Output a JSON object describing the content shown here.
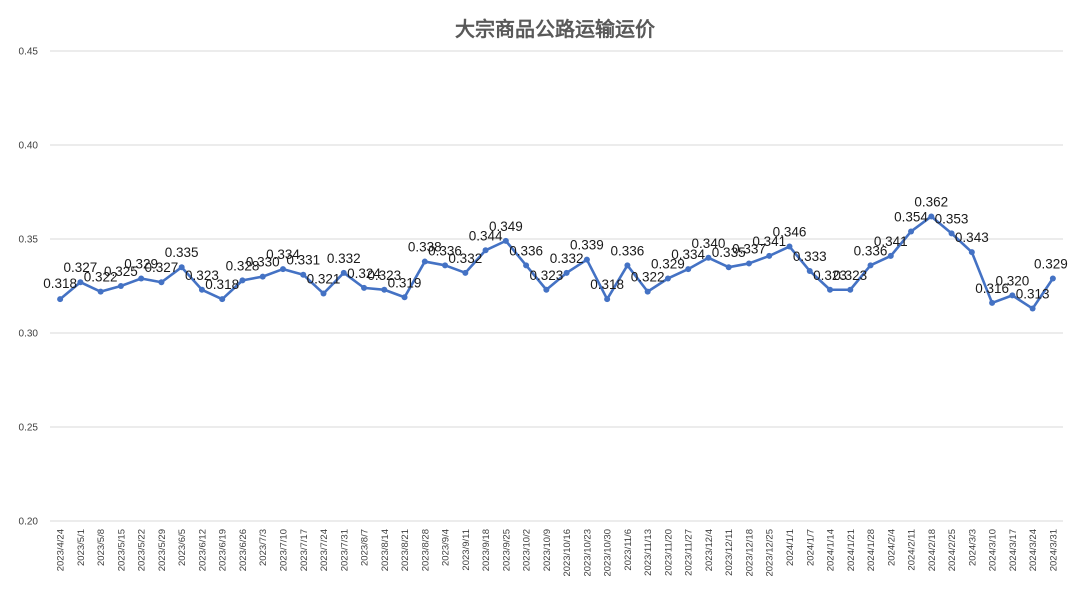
{
  "chart_data": {
    "type": "line",
    "title": "大宗商品公路运输运价",
    "xlabel": "",
    "ylabel": "",
    "ylim": [
      0.2,
      0.45
    ],
    "yticks": [
      "0.20",
      "0.25",
      "0.30",
      "0.35",
      "0.40",
      "0.45"
    ],
    "grid": true,
    "line_color": "#4472c4",
    "categories": [
      "2023/4/24",
      "2023/5/1",
      "2023/5/8",
      "2023/5/15",
      "2023/5/22",
      "2023/5/29",
      "2023/6/5",
      "2023/6/12",
      "2023/6/19",
      "2023/6/26",
      "2023/7/3",
      "2023/7/10",
      "2023/7/17",
      "2023/7/24",
      "2023/7/31",
      "2023/8/7",
      "2023/8/14",
      "2023/8/21",
      "2023/8/28",
      "2023/9/4",
      "2023/9/11",
      "2023/9/18",
      "2023/9/25",
      "2023/10/2",
      "2023/10/9",
      "2023/10/16",
      "2023/10/23",
      "2023/10/30",
      "2023/11/6",
      "2023/11/13",
      "2023/11/20",
      "2023/11/27",
      "2023/12/4",
      "2023/12/11",
      "2023/12/18",
      "2023/12/25",
      "2024/1/1",
      "2024/1/7",
      "2024/1/14",
      "2024/1/21",
      "2024/1/28",
      "2024/2/4",
      "2024/2/11",
      "2024/2/18",
      "2024/2/25",
      "2024/3/3",
      "2024/3/10",
      "2024/3/17",
      "2024/3/24",
      "2024/3/31"
    ],
    "series": [
      {
        "name": "",
        "values": [
          0.318,
          0.327,
          0.322,
          0.325,
          0.329,
          0.327,
          0.335,
          0.323,
          0.318,
          0.328,
          0.33,
          0.334,
          0.331,
          0.321,
          0.332,
          0.324,
          0.323,
          0.319,
          0.338,
          0.336,
          0.332,
          0.344,
          0.349,
          0.336,
          0.323,
          0.332,
          0.339,
          0.318,
          0.336,
          0.322,
          0.329,
          0.334,
          0.34,
          0.335,
          0.337,
          0.341,
          0.346,
          0.333,
          0.323,
          0.323,
          0.336,
          0.341,
          0.354,
          0.362,
          0.353,
          0.343,
          0.316,
          0.32,
          0.313,
          0.329
        ],
        "labels": [
          "0.318",
          "0.327",
          "0.322",
          "0.325",
          "0.329",
          "0.327",
          "0.335",
          "0.323",
          "0.318",
          "0.328",
          "0.330",
          "0.334",
          "0.331",
          "0.321",
          "0.332",
          "0.324",
          "0.323",
          "0.319",
          "0.338",
          "0.336",
          "0.332",
          "0.344",
          "0.349",
          "0.336",
          "0.323",
          "0.332",
          "0.339",
          "0.318",
          "0.336",
          "0.322",
          "0.329",
          "0.334",
          "0.340",
          "0.335",
          "0.337",
          "0.341",
          "0.346",
          "0.333",
          "0.323",
          "0.323",
          "0.336",
          "0.341",
          "0.354",
          "0.362",
          "0.353",
          "0.343",
          "0.316",
          "0.320",
          "0.313",
          "0.329"
        ]
      }
    ]
  }
}
